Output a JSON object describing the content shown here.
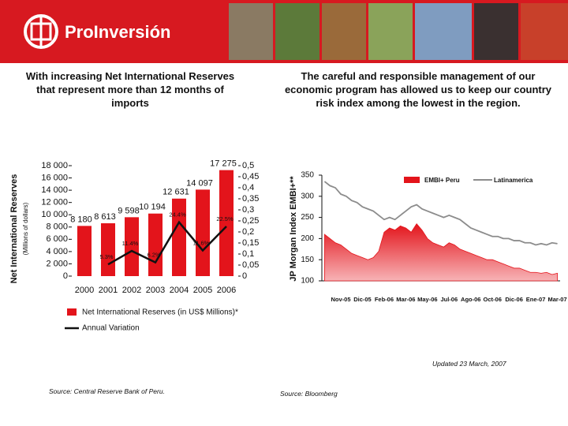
{
  "header": {
    "logo": "ProInversión"
  },
  "chart_data": [
    {
      "type": "bar",
      "title": "With increasing Net International Reserves that represent more than 12 months of imports",
      "ylabel": "Net International Reserves",
      "ylabel_sub": "(Millions of dollars)",
      "categories": [
        "2000",
        "2001",
        "2002",
        "2003",
        "2004",
        "2005",
        "2006"
      ],
      "series": [
        {
          "name": "Net International Reserves (in US$ Millions)*",
          "type": "bar",
          "color": "#e3141b",
          "values": [
            8180,
            8613,
            9598,
            10194,
            12631,
            14097,
            17275
          ],
          "value_labels": [
            "8 180",
            "8 613",
            "9 598",
            "10 194",
            "12 631",
            "14 097",
            "17 275"
          ]
        },
        {
          "name": "Annual Variation",
          "type": "line",
          "axis": "y2",
          "color": "#111111",
          "values": [
            null,
            0.053,
            0.114,
            0.062,
            0.244,
            0.116,
            0.225
          ],
          "value_labels": [
            null,
            "5.3%",
            "11.4%",
            "6.2%",
            "24.4%",
            "11.6%",
            "22.5%"
          ]
        }
      ],
      "ylim": [
        0,
        18000
      ],
      "yticks": [
        0,
        {
          "value": 2000,
          "label": "2 000"
        },
        {
          "value": 4000,
          "label": "4 000"
        },
        {
          "value": 6000,
          "label": "6 000"
        },
        {
          "value": 8000,
          "label": "8 000"
        },
        {
          "value": 10000,
          "label": "10 000"
        },
        {
          "value": 12000,
          "label": "12 000"
        },
        {
          "value": 14000,
          "label": "14 000"
        },
        {
          "value": 16000,
          "label": "16 000"
        },
        {
          "value": 18000,
          "label": "18 000"
        }
      ],
      "y2lim": [
        0,
        0.5
      ],
      "y2ticks": [
        0,
        {
          "value": 0.05,
          "label": "0,05"
        },
        {
          "value": 0.1,
          "label": "0,1"
        },
        {
          "value": 0.15,
          "label": "0,15"
        },
        {
          "value": 0.2,
          "label": "0,2"
        },
        {
          "value": 0.25,
          "label": "0,25"
        },
        {
          "value": 0.3,
          "label": "0,3"
        },
        {
          "value": 0.35,
          "label": "0,35"
        },
        {
          "value": 0.4,
          "label": "0,4"
        },
        {
          "value": 0.45,
          "label": "0,45"
        },
        {
          "value": 0.5,
          "label": "0,5"
        }
      ],
      "legend": "bottom",
      "source": "Source: Central Reserve Bank of Peru."
    },
    {
      "type": "area",
      "title": "The careful and responsible management of our economic program has allowed us to keep our country risk index among the lowest in the region.",
      "ylabel": "JP Morgan Index EMBI+**",
      "categories": [
        null,
        null,
        null,
        "Nov-05",
        null,
        null,
        null,
        "Dic-05",
        null,
        null,
        null,
        "Feb-06",
        null,
        null,
        null,
        "Mar-06",
        null,
        null,
        null,
        "May-06",
        null,
        null,
        null,
        "Jul-06",
        null,
        null,
        null,
        "Ago-06",
        null,
        null,
        null,
        "Oct-06",
        null,
        null,
        null,
        "Dic-06",
        null,
        null,
        null,
        "Ene-07",
        null,
        null,
        null,
        "Mar-07"
      ],
      "series": [
        {
          "name": "EMBI+ Peru",
          "type": "area",
          "color": "#e3141b",
          "values": [
            210,
            200,
            190,
            185,
            175,
            165,
            160,
            155,
            150,
            155,
            170,
            215,
            225,
            220,
            230,
            225,
            215,
            235,
            220,
            200,
            190,
            185,
            180,
            190,
            185,
            175,
            170,
            165,
            160,
            155,
            150,
            150,
            145,
            140,
            135,
            130,
            130,
            125,
            120,
            120,
            118,
            120,
            115,
            118
          ]
        },
        {
          "name": "Latinamerica",
          "type": "line",
          "color": "#8c8c8c",
          "values": [
            335,
            325,
            320,
            305,
            300,
            290,
            285,
            275,
            270,
            265,
            255,
            245,
            250,
            245,
            255,
            265,
            275,
            280,
            270,
            265,
            260,
            255,
            250,
            255,
            250,
            245,
            235,
            225,
            220,
            215,
            210,
            205,
            205,
            200,
            200,
            195,
            195,
            190,
            190,
            185,
            188,
            185,
            190,
            188
          ]
        }
      ],
      "ylim": [
        100,
        350
      ],
      "yticks": [
        100,
        150,
        200,
        250,
        300,
        350
      ],
      "legend": "top-right",
      "note": "Updated 23 March, 2007",
      "source": "Source: Bloomberg"
    }
  ]
}
